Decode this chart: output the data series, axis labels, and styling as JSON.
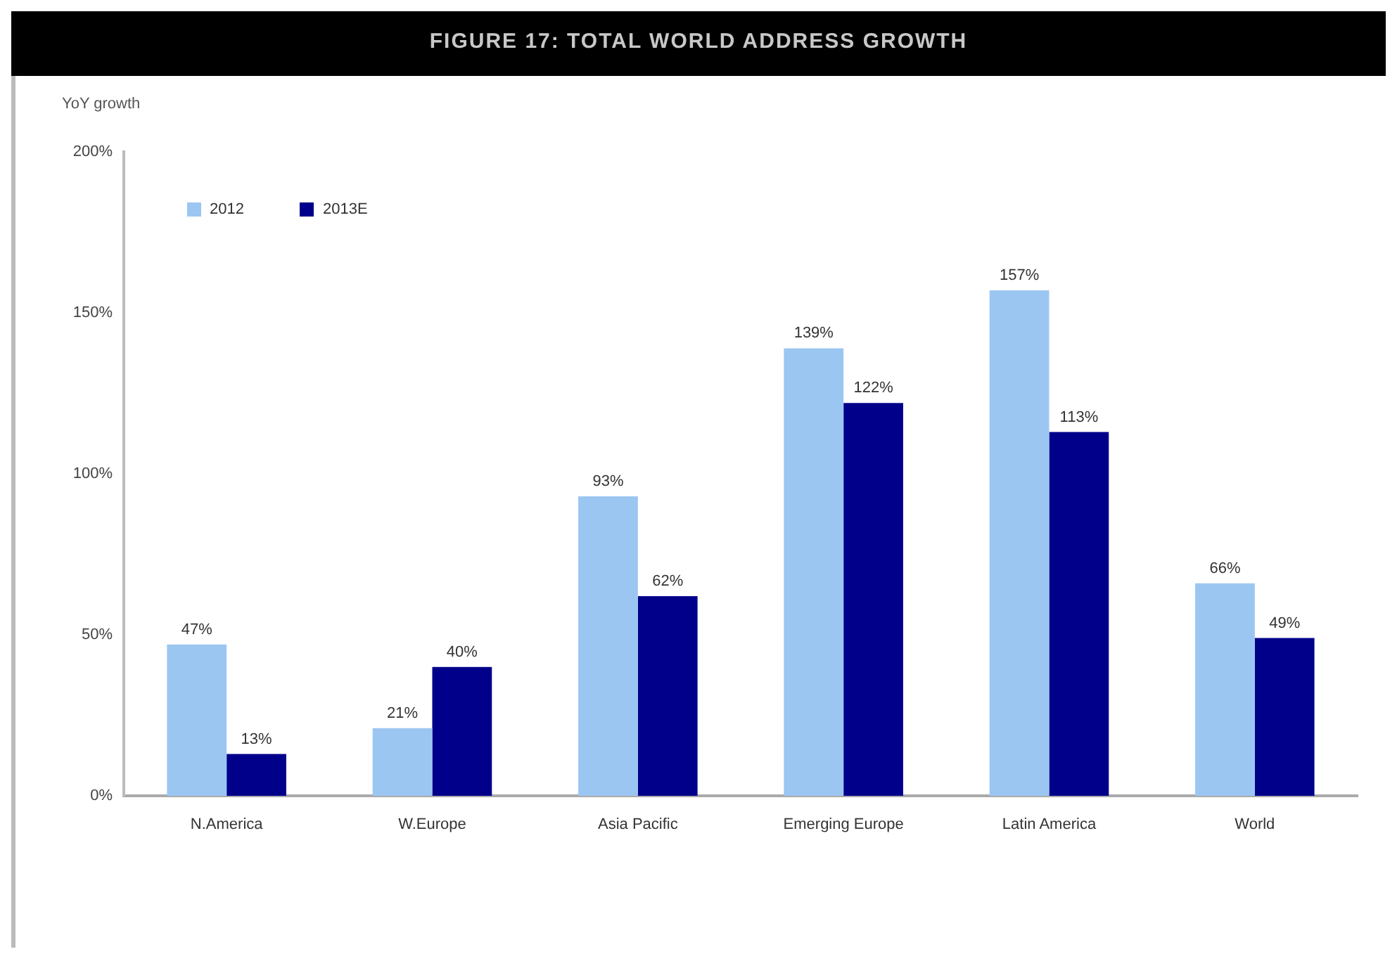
{
  "chart_data": {
    "type": "bar",
    "title": "FIGURE 17: TOTAL WORLD ADDRESS GROWTH",
    "ylabel": "YoY growth",
    "categories": [
      "N.America",
      "W.Europe",
      "Asia Pacific",
      "Emerging Europe",
      "Latin America",
      "World"
    ],
    "series": [
      {
        "name": "2012",
        "color": "#9cc6f2",
        "values": [
          47,
          21,
          93,
          139,
          157,
          66
        ],
        "value_labels": [
          "47%",
          "21%",
          "93%",
          "139%",
          "157%",
          "66%"
        ]
      },
      {
        "name": "2013E",
        "color": "#00008b",
        "values": [
          13,
          40,
          62,
          122,
          113,
          49
        ],
        "value_labels": [
          "13%",
          "40%",
          "62%",
          "122%",
          "113%",
          "49%"
        ]
      }
    ],
    "ylim": [
      0,
      200
    ],
    "yticks": [
      {
        "value": 0,
        "label": "0%"
      },
      {
        "value": 50,
        "label": "50%"
      },
      {
        "value": 100,
        "label": "100%"
      },
      {
        "value": 150,
        "label": "150%"
      },
      {
        "value": 200,
        "label": "200%"
      }
    ],
    "grid": false,
    "legend": "top left"
  }
}
